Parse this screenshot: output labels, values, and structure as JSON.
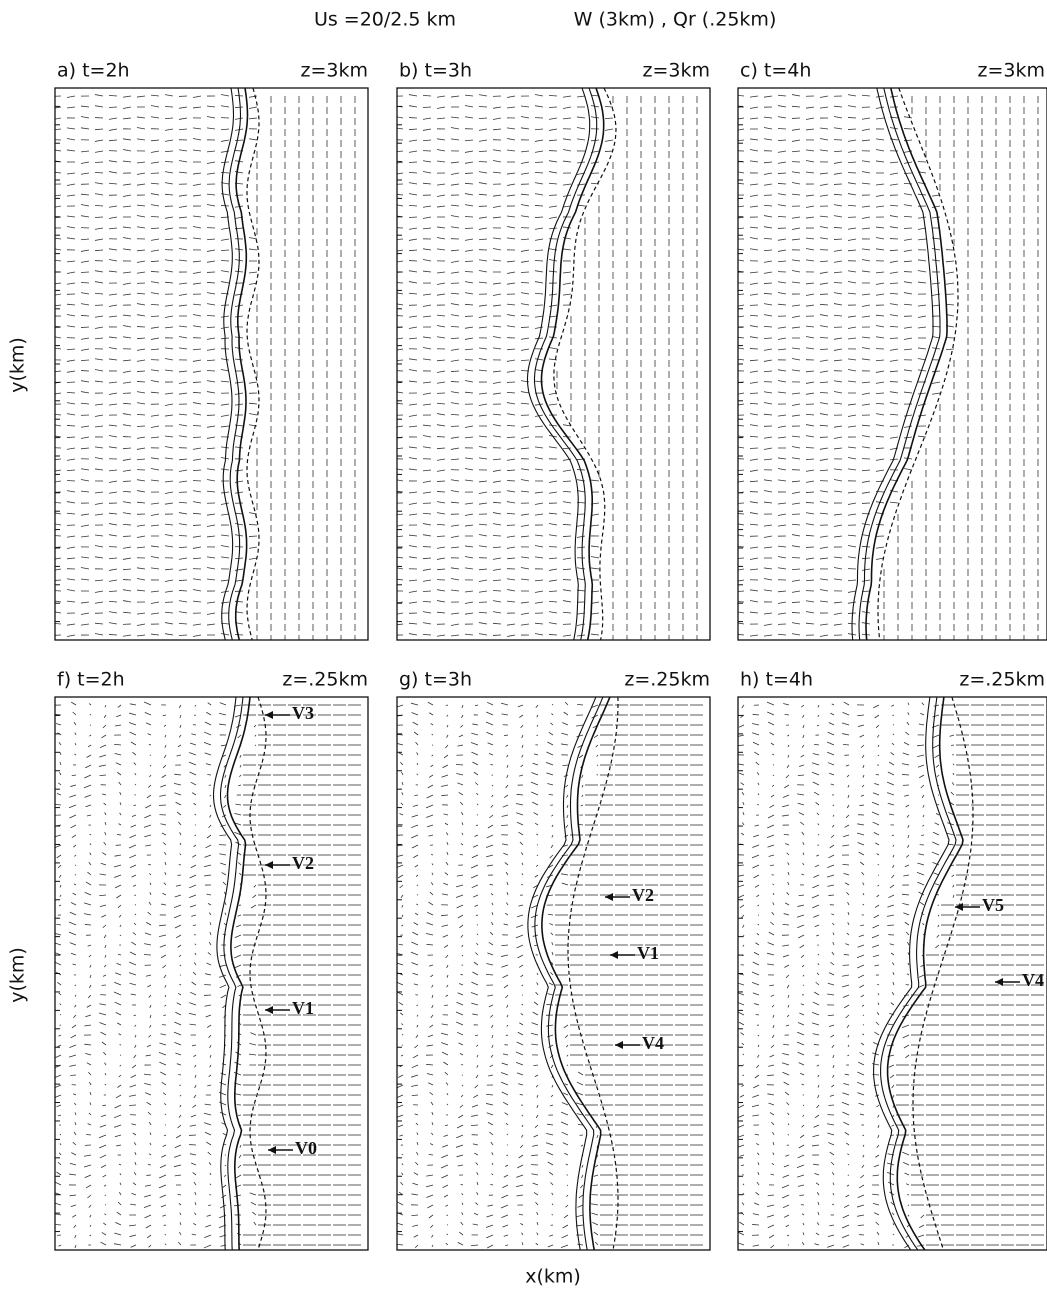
{
  "title": {
    "left": "Us =20/2.5 km",
    "right": "W (3km)  , Qr (.25km)"
  },
  "panels": [
    {
      "label": "a) t=2h",
      "level": "z=3km",
      "vortices": []
    },
    {
      "label": "b) t=3h",
      "level": "z=3km",
      "vortices": []
    },
    {
      "label": "c) t=4h",
      "level": "z=3km",
      "vortices": []
    },
    {
      "label": "f) t=2h",
      "level": "z=.25km",
      "vortices": [
        "V3",
        "V2",
        "V1",
        "V0"
      ]
    },
    {
      "label": "g) t=3h",
      "level": "z=.25km",
      "vortices": [
        "V2",
        "V1",
        "V4"
      ]
    },
    {
      "label": "h) t=4h",
      "level": "z=.25km",
      "vortices": [
        "V5",
        "V4"
      ]
    }
  ],
  "y_axis_label": "y(km)",
  "x_axis_label": "x(km)"
}
